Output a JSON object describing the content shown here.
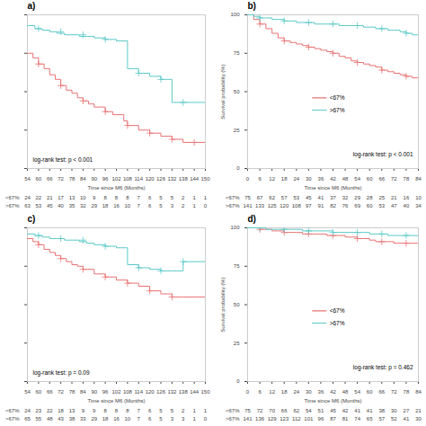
{
  "chart_data": [
    {
      "type": "line",
      "title": "a)",
      "xlabel": "Time since M6 (Months)",
      "xlim": [
        54,
        150
      ],
      "ylim": [
        0,
        100
      ],
      "xticks": [
        54,
        60,
        66,
        72,
        78,
        84,
        90,
        96,
        102,
        108,
        114,
        120,
        126,
        132,
        138,
        144,
        150
      ],
      "yticks": [
        0,
        25,
        50,
        75,
        100
      ],
      "tick_labels": "x",
      "grid": false,
      "legend": false,
      "line_style": "step",
      "annotations": [
        "log-rank test: p < 0.001"
      ],
      "series": [
        {
          "name": "<67%",
          "color": "#E87272",
          "marker": "plus",
          "x": [
            54,
            57,
            60,
            63,
            66,
            69,
            72,
            75,
            78,
            81,
            84,
            87,
            90,
            96,
            100,
            106,
            108,
            114,
            120,
            126,
            132,
            138,
            144,
            150
          ],
          "values": [
            75,
            72,
            68,
            65,
            61,
            58,
            54,
            51,
            49,
            46,
            44,
            42,
            40,
            37,
            35,
            31,
            28,
            25,
            23,
            21,
            19,
            17,
            17,
            17
          ],
          "censored": {
            "x": [
              60,
              72,
              84,
              96,
              108,
              120,
              132,
              144
            ],
            "values": [
              68,
              54,
              44,
              37,
              28,
              23,
              19,
              17
            ]
          }
        },
        {
          "name": ">67%",
          "color": "#5BC8C8",
          "marker": "plus",
          "x": [
            54,
            58,
            62,
            66,
            70,
            74,
            78,
            82,
            86,
            90,
            96,
            102,
            108,
            114,
            120,
            126,
            132,
            138,
            144,
            150
          ],
          "values": [
            93,
            91,
            90,
            89,
            88,
            87,
            87,
            86,
            86,
            85,
            84,
            83,
            65,
            62,
            60,
            58,
            43,
            43,
            43,
            43
          ],
          "censored": {
            "x": [
              60,
              72,
              84,
              96,
              114,
              126,
              138
            ],
            "values": [
              91,
              89,
              87,
              84,
              62,
              58,
              43
            ]
          }
        }
      ],
      "risk_table": [
        {
          "name": "<67%",
          "values": [
            24,
            22,
            21,
            17,
            13,
            10,
            9,
            8,
            8,
            8,
            7,
            6,
            5,
            5,
            2,
            1,
            1
          ]
        },
        {
          "name": ">67%",
          "values": [
            63,
            53,
            45,
            40,
            35,
            32,
            29,
            18,
            16,
            10,
            7,
            6,
            5,
            3,
            2,
            1,
            0
          ]
        }
      ]
    },
    {
      "type": "line",
      "title": "b)",
      "xlabel": "Time since M6 (Months)",
      "ylabel": "Survival probability (%)",
      "xlim": [
        0,
        84
      ],
      "ylim": [
        0,
        100
      ],
      "xticks": [
        0,
        6,
        12,
        18,
        24,
        30,
        36,
        42,
        48,
        54,
        60,
        66,
        72,
        78,
        84
      ],
      "yticks": [
        0,
        25,
        50,
        75,
        100
      ],
      "grid": false,
      "legend": "center",
      "line_style": "step",
      "annotations": [
        "log-rank test: p < 0.001"
      ],
      "series": [
        {
          "name": "<67%",
          "color": "#E87272",
          "marker": "plus",
          "x": [
            0,
            3,
            6,
            9,
            12,
            15,
            18,
            21,
            24,
            27,
            30,
            33,
            36,
            39,
            42,
            45,
            48,
            51,
            54,
            57,
            60,
            63,
            66,
            69,
            72,
            75,
            78,
            81,
            84
          ],
          "values": [
            100,
            97,
            94,
            91,
            88,
            85,
            83,
            82,
            81,
            80,
            79,
            78,
            77,
            76,
            75,
            73,
            72,
            70,
            69,
            68,
            67,
            66,
            64,
            63,
            62,
            61,
            60,
            59,
            58
          ],
          "censored": {
            "x": [
              6,
              18,
              30,
              42,
              54,
              66,
              78
            ],
            "values": [
              94,
              83,
              79,
              75,
              69,
              64,
              60
            ]
          }
        },
        {
          "name": ">67%",
          "color": "#5BC8C8",
          "marker": "plus",
          "x": [
            0,
            3,
            6,
            9,
            12,
            15,
            18,
            21,
            24,
            27,
            30,
            33,
            36,
            39,
            42,
            45,
            48,
            51,
            54,
            57,
            60,
            63,
            66,
            69,
            72,
            75,
            78,
            81,
            84
          ],
          "values": [
            100,
            99,
            98,
            98,
            97,
            97,
            96,
            96,
            95,
            95,
            95,
            94,
            94,
            94,
            94,
            93,
            93,
            93,
            93,
            92,
            92,
            91,
            91,
            90,
            90,
            89,
            88,
            87,
            87
          ],
          "censored": {
            "x": [
              6,
              18,
              30,
              42,
              54,
              66,
              78
            ],
            "values": [
              98,
              96,
              95,
              94,
              93,
              91,
              88
            ]
          }
        }
      ],
      "risk_table": [
        {
          "name": "<67%",
          "values": [
            75,
            67,
            62,
            57,
            53,
            45,
            41,
            37,
            32,
            29,
            28,
            25,
            21,
            16,
            10
          ]
        },
        {
          "name": ">67%",
          "values": [
            141,
            133,
            125,
            120,
            108,
            97,
            91,
            82,
            76,
            69,
            60,
            53,
            47,
            40,
            34
          ]
        }
      ]
    },
    {
      "type": "line",
      "title": "c)",
      "xlabel": "Time since M6 (Months)",
      "xlim": [
        54,
        150
      ],
      "ylim": [
        0,
        100
      ],
      "xticks": [
        54,
        60,
        66,
        72,
        78,
        84,
        90,
        96,
        102,
        108,
        114,
        120,
        126,
        132,
        138,
        144,
        150
      ],
      "yticks": [
        0,
        25,
        50,
        75,
        100
      ],
      "tick_labels": "x",
      "grid": false,
      "legend": false,
      "line_style": "step",
      "annotations": [
        "log-rank test: p = 0.09"
      ],
      "series": [
        {
          "name": "<67%",
          "color": "#E87272",
          "marker": "plus",
          "x": [
            54,
            57,
            60,
            63,
            66,
            69,
            72,
            75,
            78,
            81,
            84,
            90,
            96,
            102,
            108,
            114,
            120,
            126,
            132,
            138,
            144,
            150
          ],
          "values": [
            93,
            91,
            89,
            86,
            84,
            82,
            80,
            78,
            76,
            75,
            73,
            70,
            68,
            66,
            64,
            62,
            59,
            57,
            55,
            55,
            55,
            55
          ],
          "censored": {
            "x": [
              60,
              72,
              84,
              96,
              108,
              120,
              132
            ],
            "values": [
              89,
              80,
              73,
              68,
              64,
              59,
              55
            ]
          }
        },
        {
          "name": ">67%",
          "color": "#5BC8C8",
          "marker": "plus",
          "x": [
            54,
            58,
            62,
            66,
            70,
            74,
            78,
            82,
            86,
            90,
            96,
            102,
            108,
            114,
            120,
            126,
            132,
            138,
            144,
            150
          ],
          "values": [
            96,
            95,
            94,
            93,
            93,
            92,
            92,
            91,
            90,
            89,
            88,
            87,
            76,
            74,
            73,
            72,
            72,
            78,
            78,
            78
          ],
          "censored": {
            "x": [
              60,
              72,
              84,
              96,
              114,
              126,
              138
            ],
            "values": [
              95,
              93,
              92,
              88,
              74,
              72,
              78
            ]
          }
        }
      ],
      "risk_table": [
        {
          "name": "<67%",
          "values": [
            24,
            23,
            22,
            18,
            13,
            9,
            9,
            8,
            8,
            8,
            7,
            6,
            5,
            5,
            2,
            1,
            1
          ]
        },
        {
          "name": ">67%",
          "values": [
            65,
            55,
            48,
            43,
            38,
            33,
            29,
            18,
            16,
            10,
            7,
            6,
            5,
            3,
            3,
            1,
            0
          ]
        }
      ]
    },
    {
      "type": "line",
      "title": "d)",
      "xlabel": "Time since M6 (Months)",
      "ylabel": "Survival probability (%)",
      "xlim": [
        0,
        84
      ],
      "ylim": [
        0,
        100
      ],
      "xticks": [
        0,
        6,
        12,
        18,
        24,
        30,
        36,
        42,
        48,
        54,
        60,
        66,
        72,
        78,
        84
      ],
      "yticks": [
        0,
        25,
        50,
        75,
        100
      ],
      "grid": false,
      "legend": "center",
      "line_style": "step",
      "annotations": [
        "log-rank test: p = 0.462"
      ],
      "series": [
        {
          "name": "<67%",
          "color": "#E87272",
          "marker": "plus",
          "x": [
            0,
            3,
            6,
            9,
            12,
            15,
            18,
            21,
            24,
            27,
            30,
            33,
            36,
            39,
            42,
            45,
            48,
            51,
            54,
            57,
            60,
            63,
            66,
            69,
            72,
            75,
            78,
            81,
            84
          ],
          "values": [
            100,
            100,
            99,
            99,
            98,
            98,
            97,
            97,
            97,
            96,
            96,
            96,
            96,
            95,
            95,
            95,
            94,
            94,
            93,
            93,
            92,
            91,
            91,
            91,
            90,
            90,
            90,
            90,
            90
          ],
          "censored": {
            "x": [
              6,
              18,
              30,
              42,
              54,
              66,
              78
            ],
            "values": [
              99,
              97,
              96,
              95,
              93,
              91,
              90
            ]
          }
        },
        {
          "name": ">67%",
          "color": "#5BC8C8",
          "marker": "plus",
          "x": [
            0,
            3,
            6,
            9,
            12,
            15,
            18,
            21,
            24,
            27,
            30,
            33,
            36,
            39,
            42,
            45,
            48,
            51,
            54,
            57,
            60,
            63,
            66,
            69,
            72,
            75,
            78,
            81,
            84
          ],
          "values": [
            100,
            100,
            100,
            99,
            99,
            99,
            99,
            99,
            99,
            98,
            98,
            98,
            98,
            98,
            97,
            97,
            97,
            97,
            97,
            97,
            96,
            96,
            96,
            95,
            95,
            95,
            95,
            95,
            95
          ],
          "censored": {
            "x": [
              6,
              18,
              30,
              42,
              54,
              66,
              78
            ],
            "values": [
              100,
              99,
              98,
              97,
              97,
              96,
              95
            ]
          }
        }
      ],
      "risk_table": [
        {
          "name": "<67%",
          "values": [
            75,
            72,
            70,
            66,
            62,
            54,
            51,
            45,
            42,
            41,
            41,
            38,
            30,
            27,
            21
          ]
        },
        {
          "name": ">67%",
          "values": [
            141,
            136,
            129,
            123,
            112,
            101,
            96,
            87,
            81,
            74,
            65,
            57,
            52,
            41,
            30
          ]
        }
      ]
    }
  ]
}
